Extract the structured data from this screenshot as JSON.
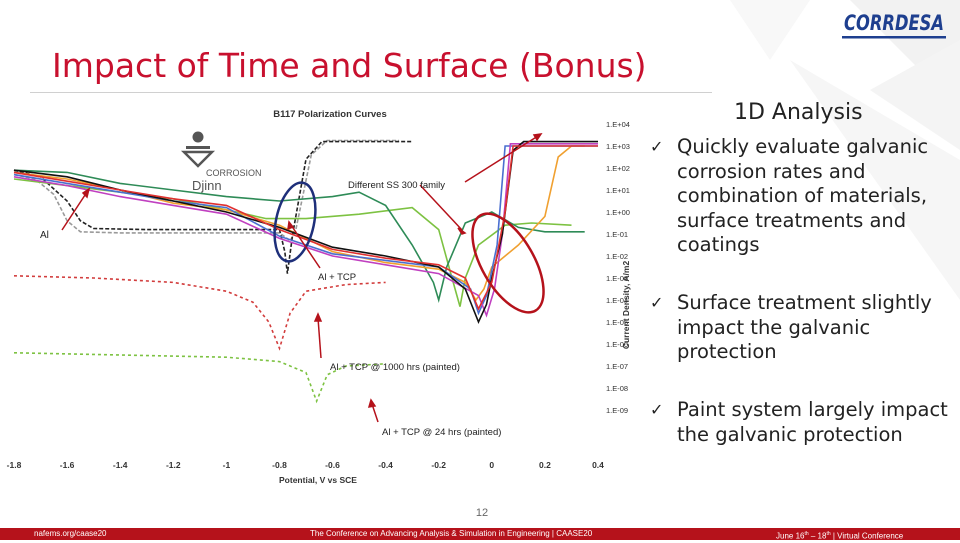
{
  "logo_text": "CORRDESA",
  "title": "Impact of Time and Surface (Bonus)",
  "analysis_title": "1D Analysis",
  "bullets": [
    {
      "check": "✓",
      "text": "Quickly evaluate galvanic corrosion rates and combination of materials, surface treatments and coatings"
    },
    {
      "check": "✓",
      "text": "Surface treatment slightly impact the galvanic protection"
    },
    {
      "check": "✓",
      "text": "Paint system largely impact the galvanic protection"
    }
  ],
  "page_number": "12",
  "footer": {
    "url": "nafems.org/caase20",
    "conference": "The Conference on Advancing Analysis & Simulation in Engineering | CAASE20",
    "date_start": "June 16",
    "date_sup1": "th",
    "date_mid": " – 18",
    "date_sup2": "th",
    "date_end": " | Virtual Conference"
  },
  "chart_data": {
    "type": "line",
    "title": "B117 Polarization Curves",
    "xlabel": "Potential, V vs SCE",
    "ylabel": "Current Density, A/m2",
    "x_ticks": [
      "-1.8",
      "-1.6",
      "-1.4",
      "-1.2",
      "-1",
      "-0.8",
      "-0.6",
      "-0.4",
      "-0.2",
      "0",
      "0.2",
      "0.4"
    ],
    "y_ticks": [
      "1.E+04",
      "1.E+03",
      "1.E+02",
      "1.E+01",
      "1.E+00",
      "1.E-01",
      "1.E-02",
      "1.E-03",
      "1.E-04",
      "1.E-05",
      "1.E-06",
      "1.E-07",
      "1.E-08",
      "1.E-09"
    ],
    "xlim": [
      -1.8,
      0.4
    ],
    "ylog_exp_range": [
      -9,
      4
    ],
    "yaxis_position": "right",
    "grid": false,
    "watermark": {
      "word1": "CORROSION",
      "word2": "Djinn"
    },
    "annotations": [
      {
        "text": "Different SS 300 family"
      },
      {
        "text": "Al"
      },
      {
        "text": "Al + TCP"
      },
      {
        "text": "Al + TCP @ 1000 hrs  (painted)"
      },
      {
        "text": "Al + TCP @ 24 hrs  (painted)"
      }
    ],
    "series": [
      {
        "color": "#9a9a9a",
        "dash": "4 2",
        "points": [
          [
            -1.8,
            1.7
          ],
          [
            -1.72,
            1.5
          ],
          [
            -1.65,
            0.8
          ],
          [
            -1.6,
            -0.4
          ],
          [
            -1.55,
            -0.9
          ],
          [
            -1.4,
            -0.95
          ],
          [
            -1.2,
            -0.95
          ],
          [
            -1.0,
            -0.95
          ],
          [
            -0.8,
            -0.95
          ],
          [
            -0.76,
            -1.3
          ],
          [
            -0.74,
            -0.9
          ],
          [
            -0.68,
            2.6
          ],
          [
            -0.62,
            3.25
          ],
          [
            -0.5,
            3.25
          ],
          [
            -0.35,
            3.25
          ]
        ]
      },
      {
        "color": "#222222",
        "dash": "4 2",
        "points": [
          [
            -1.8,
            1.9
          ],
          [
            -1.7,
            1.6
          ],
          [
            -1.6,
            0.5
          ],
          [
            -1.55,
            -0.4
          ],
          [
            -1.5,
            -0.75
          ],
          [
            -1.3,
            -0.8
          ],
          [
            -1.0,
            -0.8
          ],
          [
            -0.8,
            -0.8
          ],
          [
            -0.78,
            -1.8
          ],
          [
            -0.77,
            -2.8
          ],
          [
            -0.75,
            -1.0
          ],
          [
            -0.7,
            2.4
          ],
          [
            -0.64,
            3.2
          ],
          [
            -0.45,
            3.2
          ],
          [
            -0.3,
            3.2
          ]
        ]
      },
      {
        "color": "#d23c3c",
        "dash": "3 3",
        "points": [
          [
            -1.8,
            -2.9
          ],
          [
            -1.5,
            -3.0
          ],
          [
            -1.2,
            -3.2
          ],
          [
            -1.0,
            -3.6
          ],
          [
            -0.9,
            -4.1
          ],
          [
            -0.84,
            -5.0
          ],
          [
            -0.8,
            -6.2
          ],
          [
            -0.76,
            -4.6
          ],
          [
            -0.7,
            -3.6
          ],
          [
            -0.55,
            -3.3
          ],
          [
            -0.4,
            -3.2
          ]
        ]
      },
      {
        "color": "#7dc242",
        "dash": "3 3",
        "points": [
          [
            -1.8,
            -6.4
          ],
          [
            -1.4,
            -6.5
          ],
          [
            -1.0,
            -6.6
          ],
          [
            -0.8,
            -6.8
          ],
          [
            -0.7,
            -7.3
          ],
          [
            -0.66,
            -8.6
          ],
          [
            -0.62,
            -7.4
          ],
          [
            -0.55,
            -7.0
          ],
          [
            -0.4,
            -6.9
          ]
        ]
      },
      {
        "color": "#7dc242",
        "dash": "",
        "points": [
          [
            -1.8,
            1.5
          ],
          [
            -1.6,
            1.2
          ],
          [
            -1.4,
            0.9
          ],
          [
            -1.2,
            0.6
          ],
          [
            -1.0,
            0.1
          ],
          [
            -0.85,
            -0.3
          ],
          [
            -0.7,
            -0.3
          ],
          [
            -0.5,
            -0.1
          ],
          [
            -0.3,
            0.2
          ],
          [
            -0.2,
            -0.8
          ],
          [
            -0.15,
            -3.0
          ],
          [
            -0.12,
            -4.3
          ],
          [
            -0.1,
            -3.0
          ],
          [
            -0.05,
            -1.5
          ],
          [
            0.05,
            -0.6
          ],
          [
            0.15,
            -0.5
          ],
          [
            0.3,
            -0.6
          ]
        ]
      },
      {
        "color": "#2e8b57",
        "dash": "",
        "points": [
          [
            -1.8,
            1.9
          ],
          [
            -1.6,
            1.8
          ],
          [
            -1.4,
            1.3
          ],
          [
            -1.2,
            1.0
          ],
          [
            -1.0,
            0.7
          ],
          [
            -0.8,
            0.5
          ],
          [
            -0.6,
            0.7
          ],
          [
            -0.5,
            0.9
          ],
          [
            -0.4,
            0.3
          ],
          [
            -0.3,
            -1.5
          ],
          [
            -0.22,
            -3.2
          ],
          [
            -0.2,
            -4.0
          ],
          [
            -0.17,
            -2.5
          ],
          [
            -0.1,
            -0.5
          ],
          [
            0.0,
            0.0
          ],
          [
            0.1,
            -0.7
          ],
          [
            0.2,
            -0.9
          ],
          [
            0.35,
            -0.9
          ]
        ]
      },
      {
        "color": "#f0a030",
        "dash": "",
        "points": [
          [
            -1.8,
            1.8
          ],
          [
            -1.6,
            1.5
          ],
          [
            -1.4,
            1.0
          ],
          [
            -1.2,
            0.4
          ],
          [
            -1.0,
            0.1
          ],
          [
            -0.8,
            -0.6
          ],
          [
            -0.6,
            -1.8
          ],
          [
            -0.4,
            -2.3
          ],
          [
            -0.2,
            -2.6
          ],
          [
            -0.1,
            -3.2
          ],
          [
            -0.06,
            -4.0
          ],
          [
            -0.03,
            -3.5
          ],
          [
            0.0,
            -2.5
          ],
          [
            0.1,
            -1.5
          ],
          [
            0.2,
            -0.2
          ],
          [
            0.25,
            2.5
          ],
          [
            0.3,
            3.0
          ],
          [
            0.35,
            3.0
          ]
        ]
      },
      {
        "color": "#4a6fd0",
        "dash": "",
        "points": [
          [
            -1.8,
            1.7
          ],
          [
            -1.6,
            1.3
          ],
          [
            -1.4,
            0.9
          ],
          [
            -1.2,
            0.5
          ],
          [
            -1.0,
            0.2
          ],
          [
            -0.8,
            -1.1
          ],
          [
            -0.6,
            -1.9
          ],
          [
            -0.4,
            -2.2
          ],
          [
            -0.2,
            -2.5
          ],
          [
            -0.08,
            -3.5
          ],
          [
            -0.05,
            -4.6
          ],
          [
            -0.02,
            -3.8
          ],
          [
            0.02,
            -1.5
          ],
          [
            0.05,
            3.0
          ],
          [
            0.4,
            3.0
          ]
        ]
      },
      {
        "color": "#c040c0",
        "dash": "",
        "points": [
          [
            -1.8,
            1.6
          ],
          [
            -1.6,
            1.2
          ],
          [
            -1.4,
            0.7
          ],
          [
            -1.2,
            0.3
          ],
          [
            -1.0,
            -0.1
          ],
          [
            -0.8,
            -1.2
          ],
          [
            -0.6,
            -2.0
          ],
          [
            -0.4,
            -2.4
          ],
          [
            -0.2,
            -2.8
          ],
          [
            -0.05,
            -3.8
          ],
          [
            -0.02,
            -4.7
          ],
          [
            0.01,
            -3.5
          ],
          [
            0.04,
            -1.0
          ],
          [
            0.07,
            3.1
          ],
          [
            0.4,
            3.1
          ]
        ]
      },
      {
        "color": "#111111",
        "dash": "",
        "points": [
          [
            -1.8,
            1.9
          ],
          [
            -1.6,
            1.6
          ],
          [
            -1.4,
            1.0
          ],
          [
            -1.2,
            0.5
          ],
          [
            -1.0,
            0.0
          ],
          [
            -0.8,
            -0.7
          ],
          [
            -0.6,
            -1.6
          ],
          [
            -0.4,
            -2.0
          ],
          [
            -0.2,
            -2.5
          ],
          [
            -0.1,
            -3.5
          ],
          [
            -0.05,
            -5.0
          ],
          [
            -0.02,
            -4.2
          ],
          [
            0.0,
            -3.0
          ],
          [
            0.04,
            -1.0
          ],
          [
            0.08,
            2.8
          ],
          [
            0.12,
            3.2
          ],
          [
            0.4,
            3.2
          ]
        ]
      },
      {
        "color": "#e03030",
        "dash": "",
        "points": [
          [
            -1.8,
            1.8
          ],
          [
            -1.6,
            1.4
          ],
          [
            -1.4,
            1.0
          ],
          [
            -1.2,
            0.6
          ],
          [
            -1.0,
            0.3
          ],
          [
            -0.8,
            -0.8
          ],
          [
            -0.6,
            -1.7
          ],
          [
            -0.4,
            -2.1
          ],
          [
            -0.2,
            -2.4
          ],
          [
            -0.1,
            -3.0
          ],
          [
            -0.05,
            -4.4
          ],
          [
            0.0,
            -3.2
          ],
          [
            0.05,
            0.0
          ],
          [
            0.08,
            3.0
          ],
          [
            0.4,
            3.0
          ]
        ]
      }
    ]
  }
}
